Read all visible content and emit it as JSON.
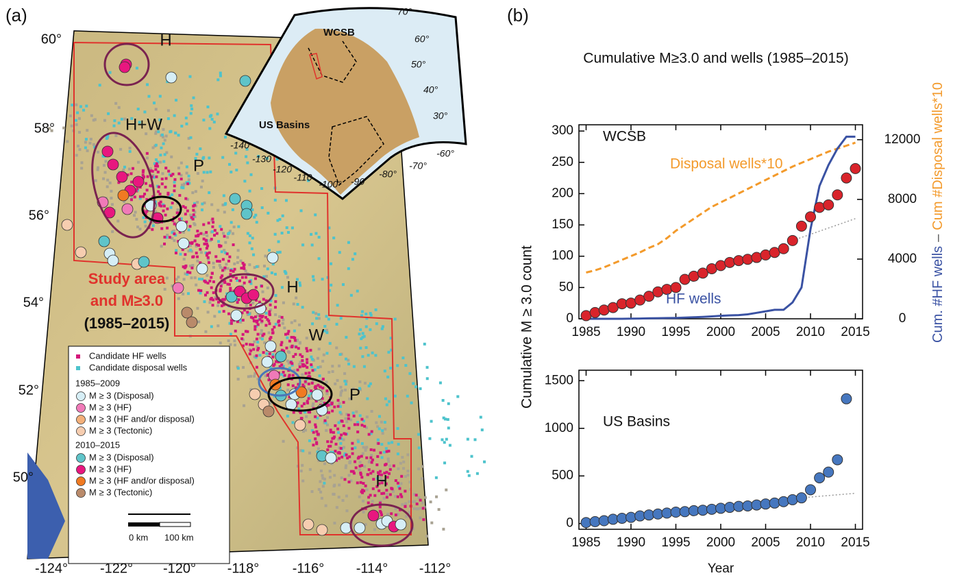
{
  "panels": [
    "(a)",
    "(b)"
  ],
  "map": {
    "lat_labels": [
      "60°",
      "58°",
      "56°",
      "54°",
      "52°",
      "50°"
    ],
    "lon_labels": [
      "-124°",
      "-122°",
      "-120°",
      "-118°",
      "-116°",
      "-114°",
      "-112°"
    ],
    "region_labels": [
      "H",
      "H+W",
      "P",
      "H",
      "W",
      "P",
      "H"
    ],
    "study_area": [
      "Study area",
      "and M≥3.0",
      "(1985–2015)"
    ],
    "inset": {
      "labels": [
        "WCSB",
        "US Basins"
      ],
      "lat_labels": [
        "70°",
        "60°",
        "50°",
        "40°",
        "30°"
      ],
      "lon_labels": [
        "-140",
        "-130",
        "-120",
        "-110",
        "-100°",
        "-90",
        "-80°",
        "-70°",
        "-60°"
      ]
    },
    "legend": {
      "wells": [
        "Candidate HF wells",
        "Candidate disposal wells"
      ],
      "groups": [
        {
          "period": "1985–2009",
          "items": [
            "M ≥ 3 (Disposal)",
            "M ≥ 3 (HF)",
            "M ≥ 3 (HF and/or disposal)",
            "M ≥ 3 (Tectonic)"
          ]
        },
        {
          "period": "2010–2015",
          "items": [
            "M ≥ 3 (Disposal)",
            "M ≥ 3 (HF)",
            "M ≥ 3 (HF and/or disposal)",
            "M ≥ 3 (Tectonic)"
          ]
        }
      ]
    },
    "scale": [
      "0 km",
      "100 km"
    ]
  },
  "chart_data": [
    {
      "type": "line",
      "title": "Cumulative M≥3.0 and wells (1985–2015)",
      "ylabel": "Cumulative M ≥ 3.0 count",
      "y2label": [
        "Cum. #HF wells",
        "–",
        "Cum #Disposal wells*10"
      ],
      "annotations": [
        "WCSB",
        "Disposal wells*10",
        "HF wells"
      ],
      "x": [
        1985,
        1986,
        1987,
        1988,
        1989,
        1990,
        1991,
        1992,
        1993,
        1994,
        1995,
        1996,
        1997,
        1998,
        1999,
        2000,
        2001,
        2002,
        2003,
        2004,
        2005,
        2006,
        2007,
        2008,
        2009,
        2010,
        2011,
        2012,
        2013,
        2014,
        2015
      ],
      "xlim": [
        1984.2,
        2015.8
      ],
      "xticks": [
        1985,
        1990,
        1995,
        2000,
        2005,
        2010,
        2015
      ],
      "ylim": [
        0,
        310
      ],
      "yticks": [
        0,
        50,
        100,
        150,
        200,
        250,
        300
      ],
      "y2lim": [
        0,
        13000
      ],
      "y2ticks": [
        0,
        4000,
        8000,
        12000
      ],
      "series": [
        {
          "style": "dotted",
          "color": "#999999",
          "values": [
            null,
            null,
            null,
            null,
            null,
            null,
            null,
            null,
            null,
            null,
            null,
            null,
            null,
            null,
            null,
            null,
            null,
            null,
            null,
            null,
            null,
            null,
            null,
            125,
            130,
            135,
            140,
            145,
            150,
            155,
            160
          ]
        },
        {
          "style": "dashed",
          "color": "#f39a2b",
          "axis": "y2",
          "values": [
            3100,
            3250,
            3450,
            3700,
            3950,
            4200,
            4450,
            4750,
            5000,
            5400,
            5900,
            6300,
            6700,
            7100,
            7500,
            7800,
            8100,
            8400,
            8700,
            9000,
            9300,
            9600,
            9900,
            10200,
            10450,
            10700,
            10950,
            11200,
            11400,
            11600,
            11800
          ]
        },
        {
          "style": "solid",
          "color": "#3a52a3",
          "axis": "y2",
          "values": [
            0,
            0,
            0,
            0,
            0,
            10,
            20,
            30,
            40,
            50,
            60,
            80,
            100,
            130,
            160,
            200,
            230,
            250,
            300,
            400,
            500,
            600,
            600,
            1100,
            2100,
            6000,
            8900,
            10300,
            11400,
            12200,
            12200
          ]
        },
        {
          "style": "markers",
          "color": "#d9242b",
          "values": [
            5,
            10,
            14,
            18,
            24,
            25,
            30,
            36,
            43,
            47,
            50,
            63,
            68,
            73,
            80,
            85,
            90,
            93,
            95,
            98,
            102,
            106,
            112,
            125,
            148,
            163,
            178,
            182,
            198,
            225,
            240
          ]
        }
      ]
    },
    {
      "type": "line",
      "xlabel": "Year",
      "annotations": [
        "US Basins"
      ],
      "x": [
        1985,
        1986,
        1987,
        1988,
        1989,
        1990,
        1991,
        1992,
        1993,
        1994,
        1995,
        1996,
        1997,
        1998,
        1999,
        2000,
        2001,
        2002,
        2003,
        2004,
        2005,
        2006,
        2007,
        2008,
        2009,
        2010,
        2011,
        2012,
        2013,
        2014,
        2015
      ],
      "xlim": [
        1984.2,
        2015.8
      ],
      "xticks": [
        1985,
        1990,
        1995,
        2000,
        2005,
        2010,
        2015
      ],
      "ylim": [
        -60,
        1610
      ],
      "yticks": [
        0,
        500,
        1000,
        1500
      ],
      "series": [
        {
          "style": "dotted",
          "color": "#999999",
          "values": [
            null,
            null,
            null,
            null,
            null,
            null,
            null,
            null,
            null,
            null,
            null,
            null,
            null,
            null,
            null,
            null,
            null,
            null,
            null,
            null,
            null,
            null,
            null,
            null,
            270,
            278,
            286,
            294,
            302,
            310,
            318
          ]
        },
        {
          "style": "markers",
          "color": "#4677bf",
          "values": [
            10,
            20,
            30,
            45,
            55,
            65,
            80,
            90,
            100,
            110,
            120,
            125,
            135,
            140,
            150,
            160,
            170,
            180,
            185,
            195,
            205,
            215,
            230,
            250,
            270,
            355,
            480,
            540,
            670,
            1310,
            null
          ]
        }
      ]
    }
  ]
}
